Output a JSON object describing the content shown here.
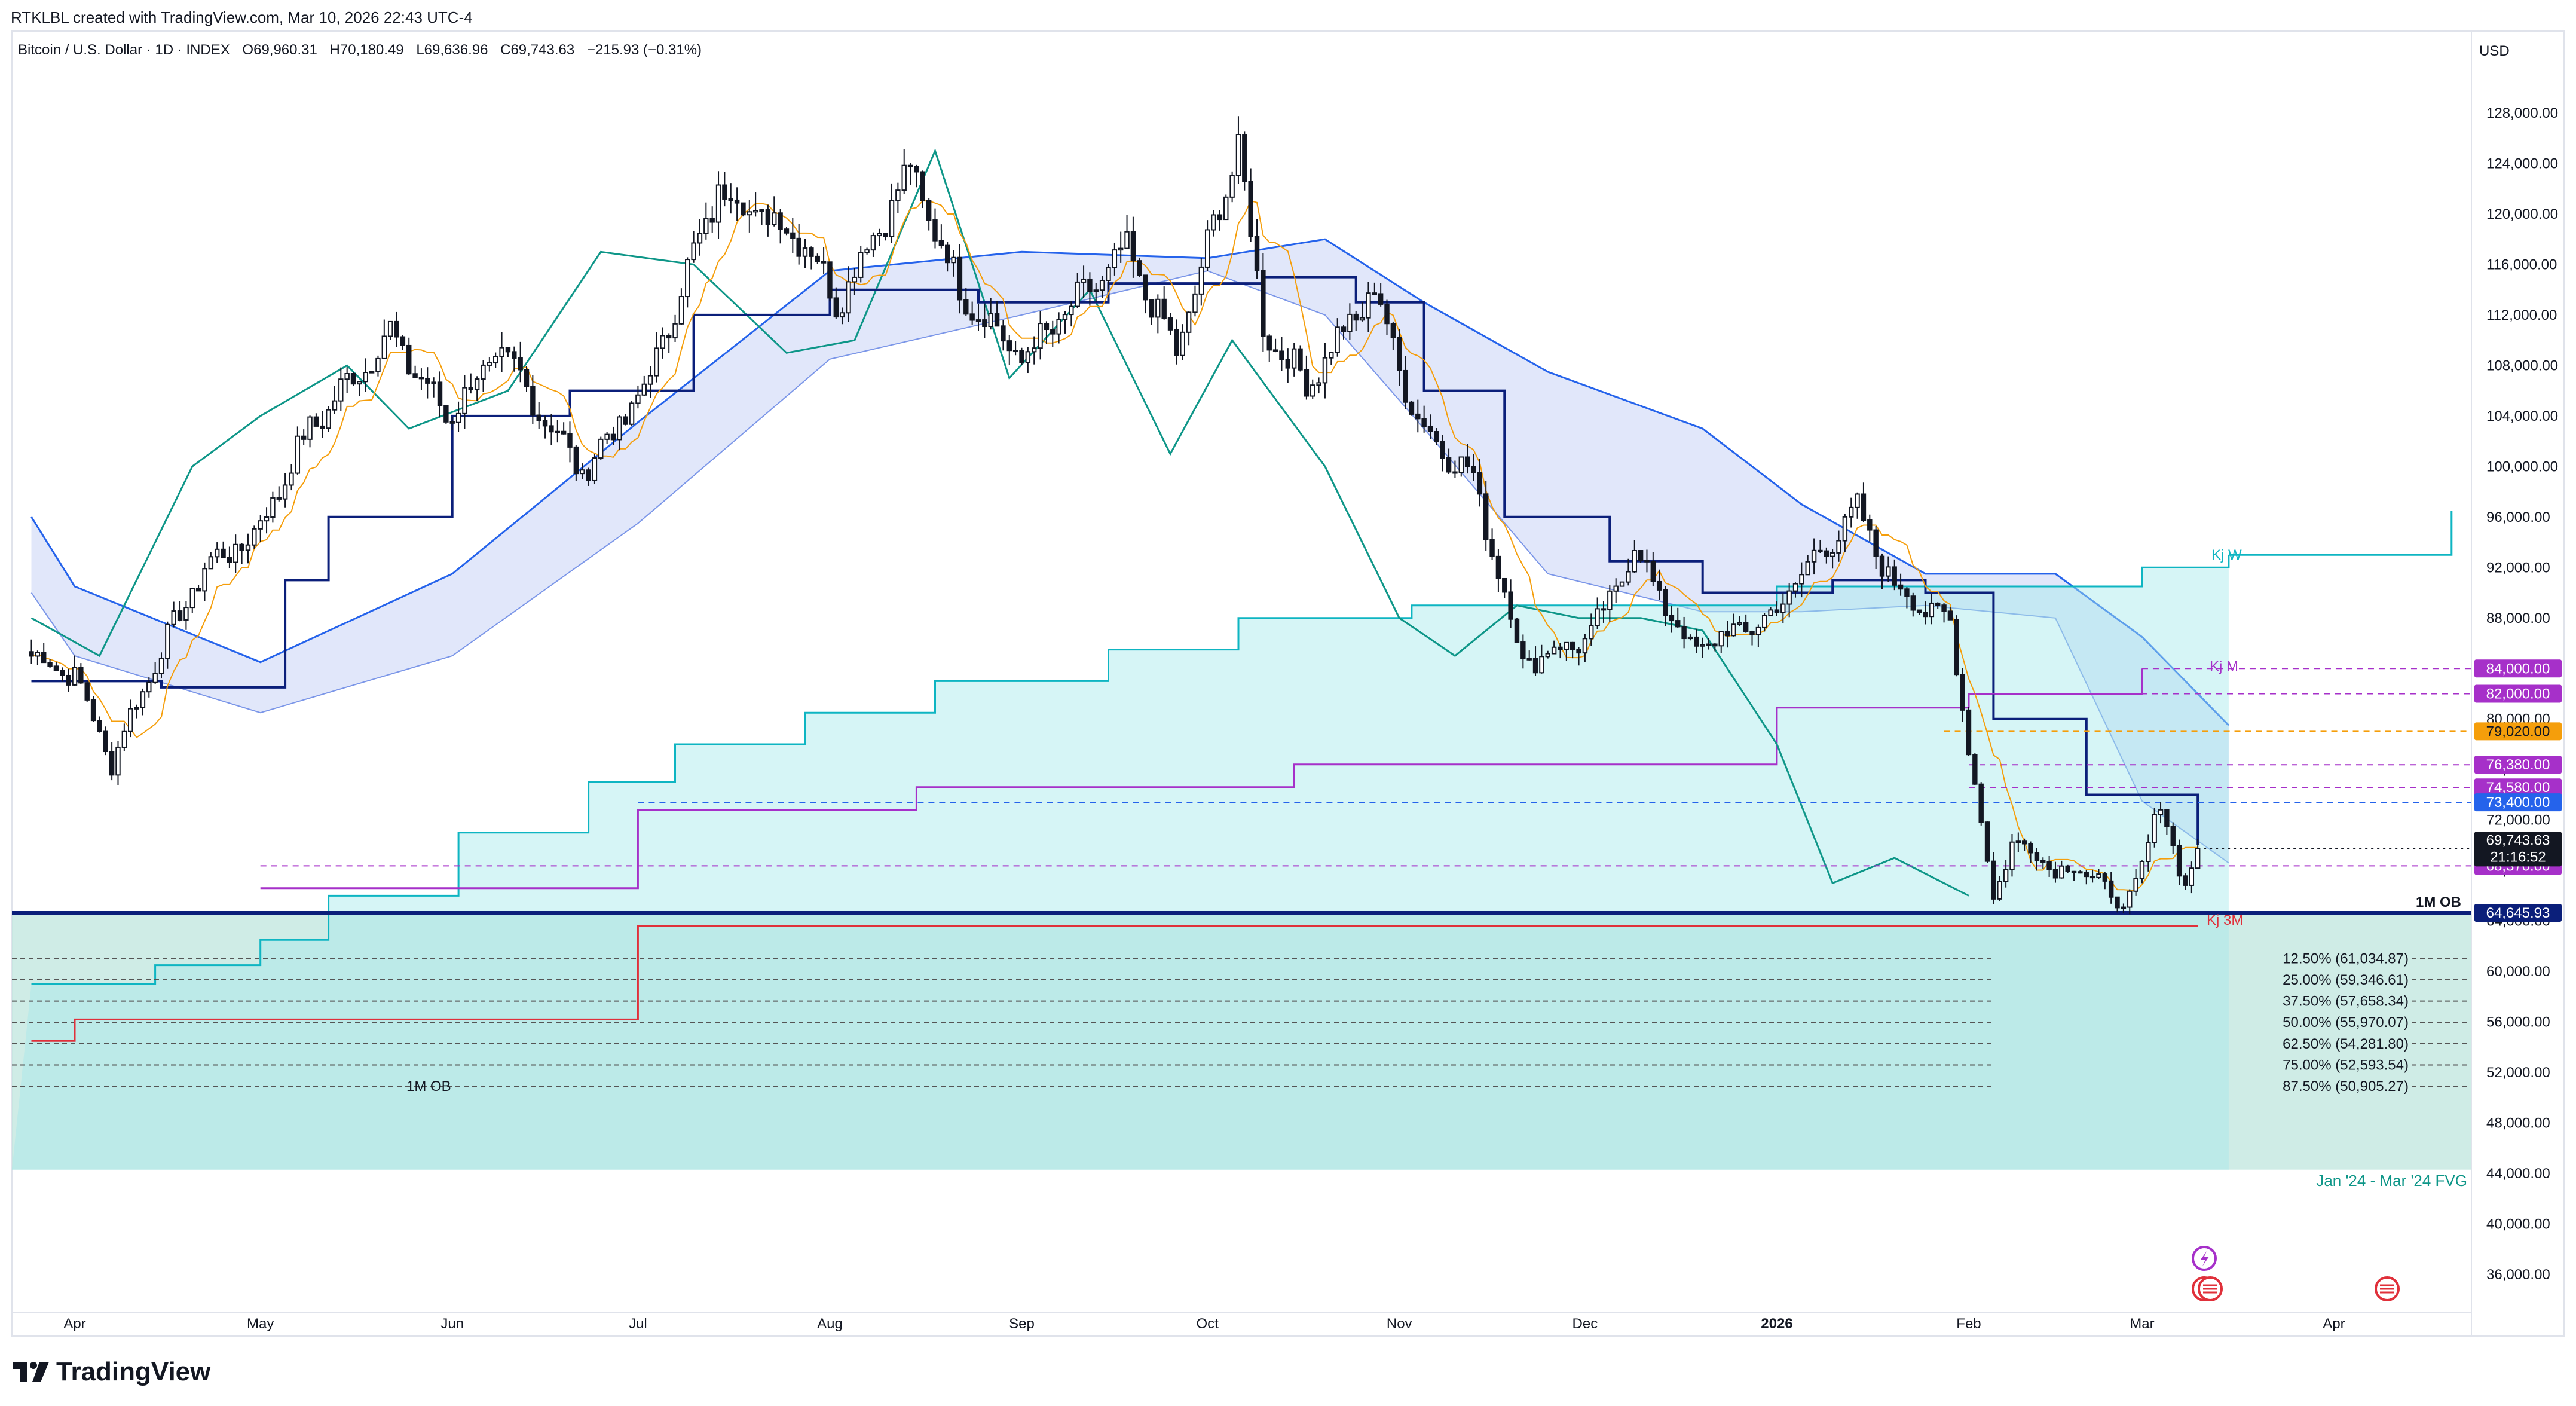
{
  "header": {
    "attribution": "RTKLBL created with TradingView.com, Mar 10, 2026 22:43 UTC-4",
    "symbol": "Bitcoin / U.S. Dollar · 1D · INDEX",
    "open": "O69,960.31",
    "high": "H70,180.49",
    "low": "L69,636.96",
    "close": "C69,743.63",
    "change": "−215.93 (−0.31%)",
    "currency": "USD"
  },
  "brand": {
    "name": "TradingView"
  },
  "colors": {
    "bull": "#131722",
    "bear": "#131722",
    "tenkan": "#f59e0b",
    "kijun": "#0b1f7a",
    "chikou": "#0e9688",
    "cloud_bear": "#c9d3f5",
    "cloud_bull": "#a5e8ec",
    "kijun_w": "#0eb5c2",
    "kijun_m": "#a630c9",
    "kijun_3m": "#e0303a",
    "fib": "#555555",
    "fvg": "#bfe6de",
    "ob": "#0b1f7a",
    "last": "#131722"
  },
  "chart_data": {
    "type": "candlestick",
    "title": "Bitcoin / U.S. Dollar · 1D · INDEX",
    "x_labels": [
      "Apr",
      "May",
      "Jun",
      "Jul",
      "Aug",
      "Sep",
      "Oct",
      "Nov",
      "Dec",
      "2026",
      "Feb",
      "Mar",
      "Apr"
    ],
    "x_label_dates": [
      "2025-04-01",
      "2025-05-01",
      "2025-06-01",
      "2025-07-01",
      "2025-08-01",
      "2025-09-01",
      "2025-10-01",
      "2025-11-01",
      "2025-12-01",
      "2026-01-01",
      "2026-02-01",
      "2026-03-01",
      "2026-04-01"
    ],
    "y_ticks": [
      "36,000.00",
      "40,000.00",
      "44,000.00",
      "48,000.00",
      "52,000.00",
      "56,000.00",
      "60,000.00",
      "64,000.00",
      "68,000.00",
      "72,000.00",
      "76,000.00",
      "80,000.00",
      "84,000.00",
      "88,000.00",
      "92,000.00",
      "96,000.00",
      "100,000.00",
      "104,000.00",
      "108,000.00",
      "112,000.00",
      "116,000.00",
      "120,000.00",
      "124,000.00",
      "128,000.00"
    ],
    "ylim": [
      33000,
      131000
    ],
    "price_anchors": [
      [
        "2025-03-25",
        85000
      ],
      [
        "2025-04-01",
        83500
      ],
      [
        "2025-04-07",
        76500
      ],
      [
        "2025-04-09",
        79000
      ],
      [
        "2025-04-14",
        84500
      ],
      [
        "2025-04-22",
        92000
      ],
      [
        "2025-04-30",
        94500
      ],
      [
        "2025-05-09",
        103000
      ],
      [
        "2025-05-22",
        110500
      ],
      [
        "2025-05-31",
        104000
      ],
      [
        "2025-06-09",
        109000
      ],
      [
        "2025-06-22",
        99500
      ],
      [
        "2025-07-02",
        106000
      ],
      [
        "2025-07-14",
        122000
      ],
      [
        "2025-07-28",
        118000
      ],
      [
        "2025-08-02",
        113000
      ],
      [
        "2025-08-14",
        123500
      ],
      [
        "2025-08-22",
        114000
      ],
      [
        "2025-09-01",
        108500
      ],
      [
        "2025-09-18",
        117000
      ],
      [
        "2025-09-26",
        109000
      ],
      [
        "2025-10-06",
        125500
      ],
      [
        "2025-10-10",
        111000
      ],
      [
        "2025-10-17",
        106500
      ],
      [
        "2025-10-28",
        114000
      ],
      [
        "2025-11-04",
        103500
      ],
      [
        "2025-11-13",
        99000
      ],
      [
        "2025-11-21",
        84500
      ],
      [
        "2025-12-02",
        86500
      ],
      [
        "2025-12-09",
        93500
      ],
      [
        "2025-12-18",
        85500
      ],
      [
        "2025-12-31",
        88000
      ],
      [
        "2026-01-05",
        91500
      ],
      [
        "2026-01-14",
        96500
      ],
      [
        "2026-01-20",
        90500
      ],
      [
        "2026-01-29",
        87500
      ],
      [
        "2026-02-05",
        65500
      ],
      [
        "2026-02-08",
        70500
      ],
      [
        "2026-02-14",
        68500
      ],
      [
        "2026-02-22",
        67500
      ],
      [
        "2026-02-26",
        64500
      ],
      [
        "2026-03-04",
        73000
      ],
      [
        "2026-03-08",
        67000
      ],
      [
        "2026-03-10",
        69743.63
      ]
    ],
    "last_price": {
      "date": "2026-03-10",
      "value": 69743.63,
      "label": "69,743.63",
      "countdown": "21:16:52"
    },
    "horizontal_levels": [
      {
        "name": "Kj M",
        "value": 84000,
        "label": "84,000.00",
        "color": "#a630c9",
        "from": "2026-03-01"
      },
      {
        "name": "",
        "value": 82000,
        "label": "82,000.00",
        "color": "#a630c9",
        "from": "2026-02-01"
      },
      {
        "name": "",
        "value": 79020,
        "label": "79,020.00",
        "color": "#f59e0b",
        "from": "2026-01-28"
      },
      {
        "name": "",
        "value": 76380,
        "label": "76,380.00",
        "color": "#a630c9",
        "from": "2026-02-01"
      },
      {
        "name": "",
        "value": 74580,
        "label": "74,580.00",
        "color": "#a630c9",
        "from": "2026-02-01"
      },
      {
        "name": "",
        "value": 73400,
        "label": "73,400.00",
        "color": "#2563eb",
        "from": "2025-07-01"
      },
      {
        "name": "",
        "value": 68370,
        "label": "68,370.00",
        "color": "#a630c9",
        "from": "2025-05-01"
      },
      {
        "name": "1M OB",
        "value": 64645.93,
        "label": "64,645.93",
        "color": "#0b1f7a",
        "from": "2025-03-25"
      }
    ],
    "annotations": {
      "kj_w": "Kj W",
      "kj_3m": "Kj 3M",
      "kj_m": "Kj M",
      "ob_top": "1M OB",
      "ob_bottom": "1M OB",
      "fvg": "Jan '24 - Mar '24 FVG"
    },
    "fib_levels": [
      {
        "label": "12.50% (61,034.87)",
        "value": 61034.87
      },
      {
        "label": "25.00% (59,346.61)",
        "value": 59346.61
      },
      {
        "label": "37.50% (57,658.34)",
        "value": 57658.34
      },
      {
        "label": "50.00% (55,970.07)",
        "value": 55970.07
      },
      {
        "label": "62.50% (54,281.80)",
        "value": 54281.8
      },
      {
        "label": "75.00% (52,593.54)",
        "value": 52593.54
      },
      {
        "label": "87.50% (50,905.27)",
        "value": 50905.27
      }
    ],
    "fvg_zone": {
      "from": 44300,
      "to": 64645.93
    },
    "kijun_weekly": [
      [
        "2025-03-25",
        59000
      ],
      [
        "2025-04-14",
        60500
      ],
      [
        "2025-05-01",
        62500
      ],
      [
        "2025-05-12",
        66000
      ],
      [
        "2025-06-02",
        71000
      ],
      [
        "2025-06-23",
        75000
      ],
      [
        "2025-07-07",
        78000
      ],
      [
        "2025-07-28",
        80500
      ],
      [
        "2025-08-18",
        83000
      ],
      [
        "2025-09-15",
        85500
      ],
      [
        "2025-10-06",
        88000
      ],
      [
        "2025-11-03",
        89000
      ],
      [
        "2025-12-01",
        89000
      ],
      [
        "2026-01-01",
        90500
      ],
      [
        "2026-02-01",
        90500
      ],
      [
        "2026-03-01",
        92000
      ],
      [
        "2026-03-15",
        93000
      ]
    ],
    "kijun_weekly_future": [
      [
        "2026-03-15",
        93000
      ],
      [
        "2026-04-20",
        96500
      ]
    ],
    "kijun_3m": [
      [
        "2025-03-25",
        54500
      ],
      [
        "2025-04-01",
        56200
      ],
      [
        "2025-07-01",
        56200
      ],
      [
        "2025-07-01",
        63600
      ],
      [
        "2026-03-10",
        63600
      ]
    ],
    "kijun_monthly": [
      [
        "2025-05-01",
        66600
      ],
      [
        "2025-07-01",
        66600
      ],
      [
        "2025-07-01",
        72800
      ],
      [
        "2025-08-15",
        74600
      ],
      [
        "2025-10-15",
        76400
      ],
      [
        "2025-12-01",
        76400
      ],
      [
        "2026-01-01",
        80900
      ],
      [
        "2026-02-01",
        82000
      ],
      [
        "2026-03-01",
        84000
      ]
    ],
    "daily_kijun": [
      [
        "2025-03-25",
        83000
      ],
      [
        "2025-04-15",
        82500
      ],
      [
        "2025-05-05",
        91000
      ],
      [
        "2025-05-12",
        96000
      ],
      [
        "2025-06-01",
        104000
      ],
      [
        "2025-06-20",
        106000
      ],
      [
        "2025-07-10",
        112000
      ],
      [
        "2025-08-01",
        114000
      ],
      [
        "2025-08-25",
        113000
      ],
      [
        "2025-09-15",
        114500
      ],
      [
        "2025-10-10",
        115000
      ],
      [
        "2025-10-25",
        113000
      ],
      [
        "2025-11-05",
        106000
      ],
      [
        "2025-11-18",
        96000
      ],
      [
        "2025-12-05",
        92500
      ],
      [
        "2025-12-20",
        90000
      ],
      [
        "2026-01-10",
        91000
      ],
      [
        "2026-01-25",
        90000
      ],
      [
        "2026-02-05",
        80000
      ],
      [
        "2026-02-20",
        74000
      ],
      [
        "2026-03-10",
        70000
      ]
    ],
    "chikou_span": [
      [
        "2025-03-25",
        88000
      ],
      [
        "2025-04-05",
        85000
      ],
      [
        "2025-04-20",
        100000
      ],
      [
        "2025-05-01",
        104000
      ],
      [
        "2025-05-15",
        108000
      ],
      [
        "2025-05-25",
        103000
      ],
      [
        "2025-06-10",
        106000
      ],
      [
        "2025-06-25",
        117000
      ],
      [
        "2025-07-10",
        116000
      ],
      [
        "2025-07-25",
        109000
      ],
      [
        "2025-08-05",
        110000
      ],
      [
        "2025-08-18",
        125000
      ],
      [
        "2025-08-30",
        107000
      ],
      [
        "2025-09-12",
        114000
      ],
      [
        "2025-09-25",
        101000
      ],
      [
        "2025-10-05",
        110000
      ],
      [
        "2025-10-20",
        100000
      ],
      [
        "2025-11-01",
        88000
      ],
      [
        "2025-11-10",
        85000
      ],
      [
        "2025-11-20",
        89000
      ],
      [
        "2025-11-30",
        88000
      ],
      [
        "2025-12-10",
        88000
      ],
      [
        "2025-12-20",
        87000
      ],
      [
        "2026-01-01",
        78000
      ],
      [
        "2026-01-10",
        67000
      ],
      [
        "2026-01-20",
        69000
      ],
      [
        "2026-02-01",
        66000
      ]
    ],
    "cloud_upper": [
      [
        "2025-03-25",
        96000
      ],
      [
        "2025-04-01",
        90500
      ],
      [
        "2025-05-01",
        84500
      ],
      [
        "2025-06-01",
        91500
      ],
      [
        "2025-07-01",
        103500
      ],
      [
        "2025-08-01",
        115500
      ],
      [
        "2025-09-01",
        117000
      ],
      [
        "2025-10-01",
        116500
      ],
      [
        "2025-10-20",
        118000
      ],
      [
        "2025-11-05",
        113000
      ],
      [
        "2025-11-25",
        107500
      ],
      [
        "2025-12-20",
        103000
      ],
      [
        "2026-01-05",
        97000
      ],
      [
        "2026-01-25",
        91500
      ],
      [
        "2026-02-15",
        91500
      ],
      [
        "2026-03-01",
        86500
      ],
      [
        "2026-03-15",
        79500
      ]
    ],
    "cloud_lower": [
      [
        "2025-03-25",
        90000
      ],
      [
        "2025-04-01",
        85000
      ],
      [
        "2025-05-01",
        80500
      ],
      [
        "2025-06-01",
        85000
      ],
      [
        "2025-07-01",
        95500
      ],
      [
        "2025-08-01",
        108500
      ],
      [
        "2025-09-01",
        112000
      ],
      [
        "2025-10-01",
        115500
      ],
      [
        "2025-10-20",
        112000
      ],
      [
        "2025-11-05",
        103000
      ],
      [
        "2025-11-25",
        91500
      ],
      [
        "2025-12-20",
        88500
      ],
      [
        "2026-01-05",
        88500
      ],
      [
        "2026-01-25",
        89000
      ],
      [
        "2026-02-15",
        88000
      ],
      [
        "2026-03-01",
        73500
      ],
      [
        "2026-03-15",
        68600
      ]
    ]
  }
}
